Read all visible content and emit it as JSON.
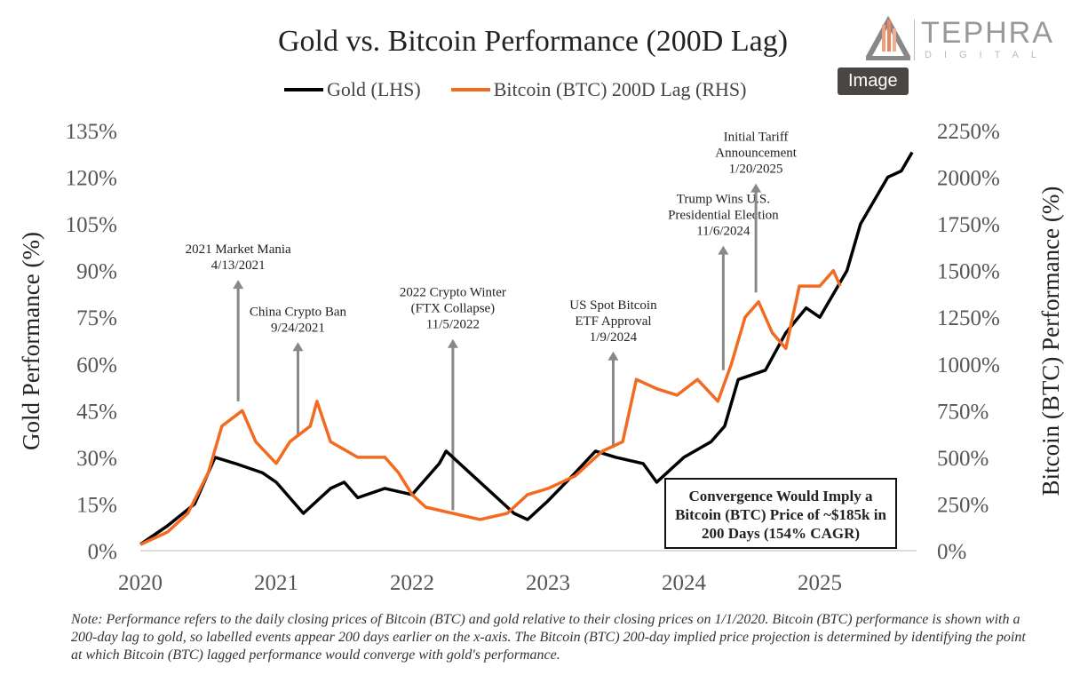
{
  "logo": {
    "name": "TEPHRA",
    "sub": "DIGITAL"
  },
  "tooltip": "Image",
  "note": "Note: Performance refers to the daily closing prices of Bitcoin (BTC) and gold relative to their closing prices on 1/1/2020. Bitcoin (BTC) performance is shown with a 200-day lag to gold, so labelled events appear 200 days earlier on the x-axis. The Bitcoin (BTC) 200-day implied price projection is determined by identifying the point at which Bitcoin (BTC) lagged performance would converge with gold's performance.",
  "callout": "Convergence Would Imply a Bitcoin (BTC) Price of ~$185k in 200 Days (154% CAGR)",
  "colors": {
    "gold": "#000000",
    "btc": "#f26b21"
  },
  "chart_data": {
    "type": "line",
    "title": "Gold vs. Bitcoin Performance (200D Lag)",
    "ylabel": "Gold Performance (%)",
    "y2label": "Bitcoin (BTC) Performance (%)",
    "xlim": [
      2020,
      2025.7
    ],
    "ylim": [
      0,
      135
    ],
    "y2lim": [
      0,
      2250
    ],
    "xticks": [
      "2020",
      "2021",
      "2022",
      "2023",
      "2024",
      "2025"
    ],
    "yticks": [
      "0%",
      "15%",
      "30%",
      "45%",
      "60%",
      "75%",
      "90%",
      "105%",
      "120%",
      "135%"
    ],
    "y2ticks": [
      "0%",
      "250%",
      "500%",
      "750%",
      "1000%",
      "1250%",
      "1500%",
      "1750%",
      "2000%",
      "2250%"
    ],
    "series": [
      {
        "name": "Gold (LHS)",
        "axis": "left",
        "x": [
          2020.0,
          2020.2,
          2020.4,
          2020.55,
          2020.7,
          2020.9,
          2021.0,
          2021.2,
          2021.4,
          2021.5,
          2021.6,
          2021.8,
          2022.0,
          2022.2,
          2022.25,
          2022.4,
          2022.6,
          2022.75,
          2022.85,
          2023.0,
          2023.2,
          2023.35,
          2023.5,
          2023.7,
          2023.8,
          2024.0,
          2024.2,
          2024.3,
          2024.4,
          2024.6,
          2024.75,
          2024.9,
          2025.0,
          2025.2,
          2025.3,
          2025.5,
          2025.6,
          2025.68
        ],
        "y": [
          2,
          8,
          15,
          30,
          28,
          25,
          22,
          12,
          20,
          22,
          17,
          20,
          18,
          28,
          32,
          26,
          18,
          12,
          10,
          16,
          25,
          32,
          30,
          28,
          22,
          30,
          35,
          40,
          55,
          58,
          70,
          78,
          75,
          90,
          105,
          120,
          122,
          128
        ]
      },
      {
        "name": "Bitcoin (BTC) 200D Lag (RHS)",
        "axis": "right",
        "x": [
          2020.0,
          2020.2,
          2020.35,
          2020.5,
          2020.6,
          2020.75,
          2020.85,
          2021.0,
          2021.1,
          2021.25,
          2021.3,
          2021.4,
          2021.6,
          2021.8,
          2021.9,
          2022.0,
          2022.1,
          2022.3,
          2022.5,
          2022.7,
          2022.85,
          2023.0,
          2023.2,
          2023.4,
          2023.55,
          2023.65,
          2023.8,
          2023.95,
          2024.1,
          2024.25,
          2024.35,
          2024.45,
          2024.55,
          2024.65,
          2024.75,
          2024.85,
          2025.0,
          2025.1,
          2025.15
        ],
        "y": [
          33,
          100,
          200,
          417,
          667,
          750,
          583,
          467,
          583,
          667,
          800,
          583,
          500,
          500,
          417,
          300,
          233,
          200,
          167,
          200,
          300,
          333,
          400,
          533,
          583,
          917,
          867,
          833,
          917,
          800,
          1000,
          1250,
          1333,
          1167,
          1083,
          1417,
          1417,
          1500,
          1417
        ]
      }
    ],
    "annotations": [
      {
        "lines": [
          "2021 Market Mania",
          "4/13/2021"
        ],
        "x": 2020.72,
        "y_from": 48,
        "y_to": 87
      },
      {
        "lines": [
          "China Crypto Ban",
          "9/24/2021"
        ],
        "x": 2021.16,
        "y_from": 37,
        "y_to": 67
      },
      {
        "lines": [
          "2022 Crypto Winter",
          "(FTX Collapse)",
          "11/5/2022"
        ],
        "x": 2022.3,
        "y_from": 13,
        "y_to": 68
      },
      {
        "lines": [
          "US Spot Bitcoin",
          "ETF Approval",
          "1/9/2024"
        ],
        "x": 2023.48,
        "y_from": 33,
        "y_to": 64
      },
      {
        "lines": [
          "Trump Wins U.S.",
          "Presidential Election",
          "11/6/2024"
        ],
        "x": 2024.29,
        "y_from": 58,
        "y_to": 98
      },
      {
        "lines": [
          "Initial Tariff",
          "Announcement",
          "1/20/2025"
        ],
        "x": 2024.53,
        "y_from": 83,
        "y_to": 118
      }
    ]
  }
}
